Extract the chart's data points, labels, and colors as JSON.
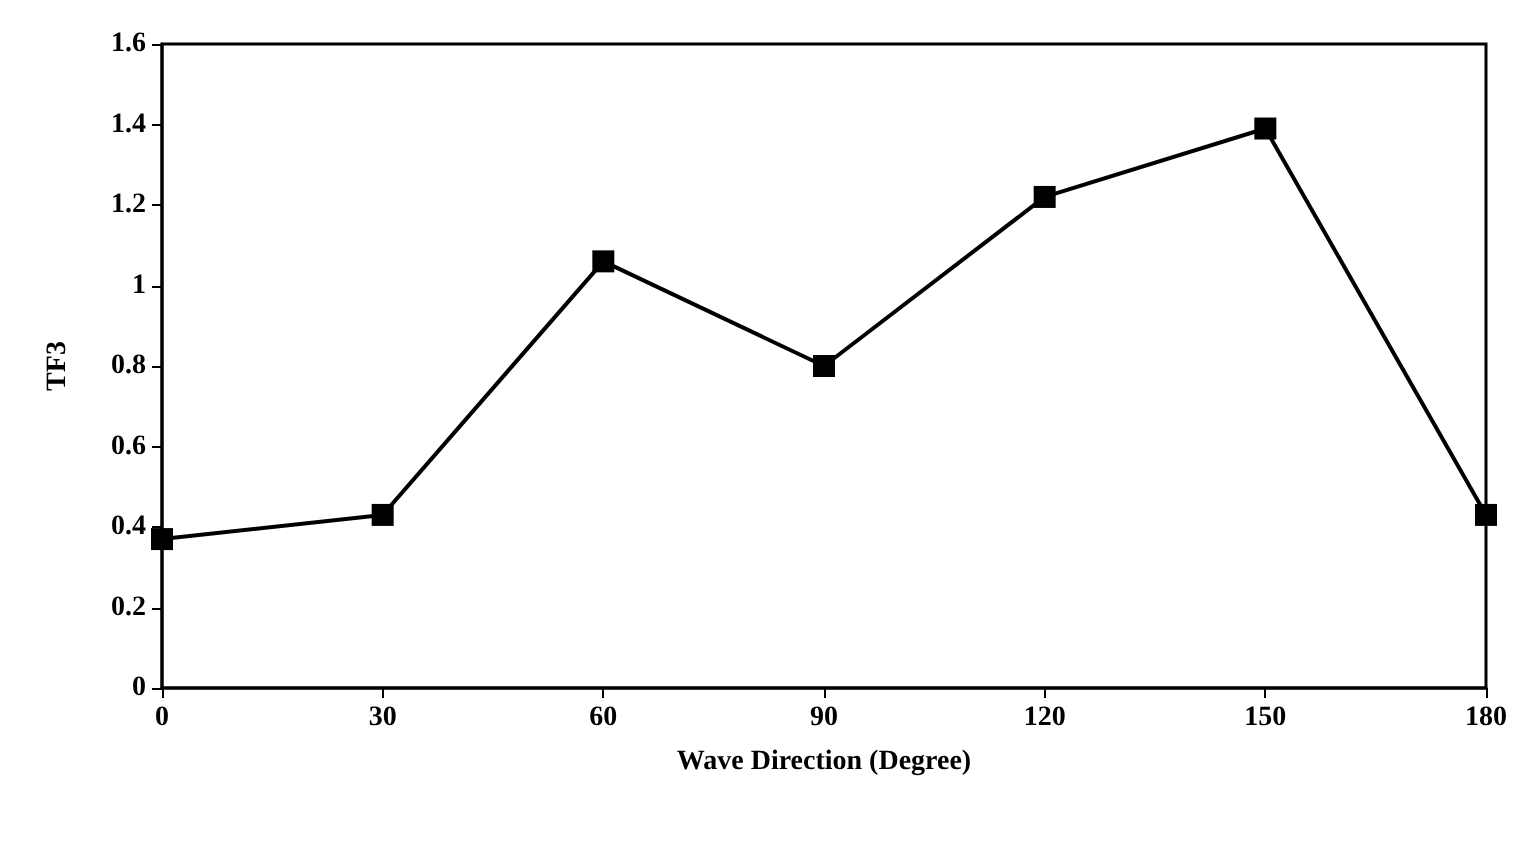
{
  "chart_data": {
    "type": "line",
    "xlabel": "Wave Direction (Degree)",
    "ylabel": "TF3",
    "x": [
      0,
      30,
      60,
      90,
      120,
      150,
      180
    ],
    "series": [
      {
        "color": "#000000",
        "values": [
          0.37,
          0.43,
          1.06,
          0.8,
          1.22,
          1.39,
          0.43
        ]
      }
    ],
    "xlim": [
      0,
      180
    ],
    "xticks": [
      0,
      30,
      60,
      90,
      120,
      150,
      180
    ],
    "ylim": [
      0,
      1.6
    ],
    "yticks": [
      0,
      0.2,
      0.4,
      0.6,
      0.8,
      1,
      1.2,
      1.4,
      1.6
    ],
    "grid": false,
    "marker": "square",
    "line_style": "solid"
  }
}
